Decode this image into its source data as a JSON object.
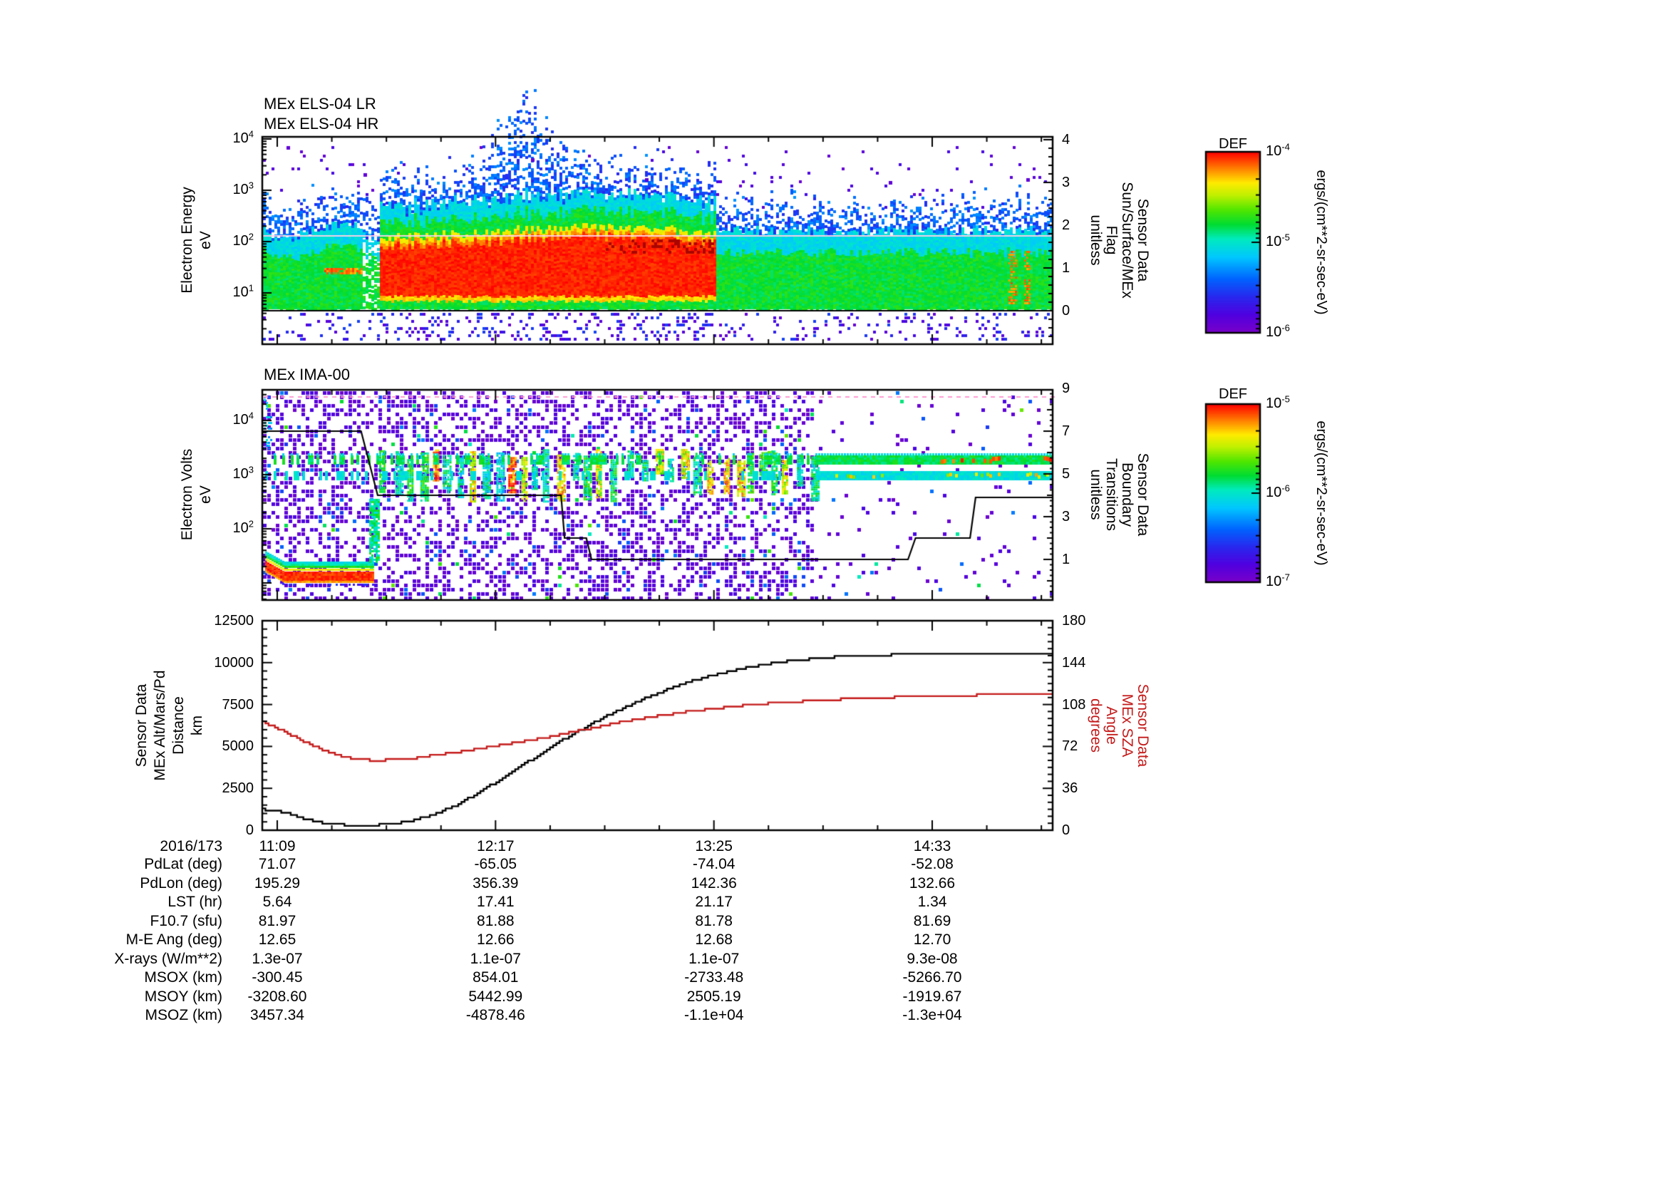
{
  "labels": {
    "els_title_1": "MEx ELS-04 LR",
    "els_title_2": "MEx ELS-04 HR",
    "ima_title": "MEx IMA-00",
    "els_ylabel": [
      "Electron Energy",
      "eV"
    ],
    "ima_ylabel": [
      "Electron Volts",
      "eV"
    ],
    "alt_ylabel": [
      "Sensor Data",
      "MEx Alt/Mars/Pd",
      "Distance",
      "km"
    ],
    "els_right_label": [
      "Sensor Data",
      "Sun/Surface/MEx",
      "Flag",
      "unitless"
    ],
    "ima_right_label": [
      "Sensor Data",
      "Boundary",
      "Transitions",
      "unitless"
    ],
    "sza_right_label": [
      "Sensor Data",
      "MEx SZA",
      "Angle",
      "degrees"
    ],
    "colorbar_title": "DEF",
    "colorbar_unit": "ergs/(cm**2-sr-sec-eV)"
  },
  "axes": {
    "date": "2016/173",
    "time_ticks": [
      "11:09",
      "12:17",
      "13:25",
      "14:33"
    ],
    "els_left_exponents": [
      "4",
      "3",
      "2",
      "1"
    ],
    "ima_left_exponents": [
      "4",
      "3",
      "2"
    ],
    "els_right_ticks": [
      "4",
      "3",
      "2",
      "1",
      "0"
    ],
    "ima_right_ticks": [
      "9",
      "7",
      "5",
      "3",
      "1"
    ],
    "alt_left_ticks": [
      "12500",
      "10000",
      "7500",
      "5000",
      "2500",
      "0"
    ],
    "sza_right_ticks": [
      "180",
      "144",
      "108",
      "72",
      "36",
      "0"
    ],
    "cb1_exponents": [
      "-4",
      "-5",
      "-6"
    ],
    "cb2_exponents": [
      "-5",
      "-6",
      "-7"
    ]
  },
  "table": {
    "corner": "2016/173",
    "times": [
      "11:09",
      "12:17",
      "13:25",
      "14:33"
    ],
    "rows": [
      {
        "label": "PdLat (deg)",
        "values": [
          "71.07",
          "-65.05",
          "-74.04",
          "-52.08"
        ]
      },
      {
        "label": "PdLon (deg)",
        "values": [
          "195.29",
          "356.39",
          "142.36",
          "132.66"
        ]
      },
      {
        "label": "LST (hr)",
        "values": [
          "5.64",
          "17.41",
          "21.17",
          "1.34"
        ]
      },
      {
        "label": "F10.7 (sfu)",
        "values": [
          "81.97",
          "81.88",
          "81.78",
          "81.69"
        ]
      },
      {
        "label": "M-E Ang (deg)",
        "values": [
          "12.65",
          "12.66",
          "12.68",
          "12.70"
        ]
      },
      {
        "label": "X-rays (W/m**2)",
        "values": [
          "1.3e-07",
          "1.1e-07",
          "1.1e-07",
          "9.3e-08"
        ]
      },
      {
        "label": "MSOX (km)",
        "values": [
          "-300.45",
          "854.01",
          "-2733.48",
          "-5266.70"
        ]
      },
      {
        "label": "MSOY (km)",
        "values": [
          "-3208.60",
          "5442.99",
          "2505.19",
          "-1919.67"
        ]
      },
      {
        "label": "MSOZ (km)",
        "values": [
          "3457.34",
          "-4878.46",
          "-1.1e+04",
          "-1.3e+04"
        ]
      }
    ]
  },
  "colors": {
    "sza_red": "#c41a1a",
    "line_black": "#000000",
    "pink_line": "#ffd2e8",
    "background": "#ffffff"
  },
  "chart_data": [
    {
      "type": "heatmap",
      "title": "MEx ELS-04 LR / MEx ELS-04 HR",
      "ylabel": "Electron Energy eV",
      "yscale": "log",
      "ylim": [
        1,
        10000
      ],
      "x_time_ticks": [
        "11:09",
        "12:17",
        "13:25",
        "14:33"
      ],
      "colorbar": {
        "title": "DEF",
        "units": "ergs/(cm**2-sr-sec-eV)",
        "ticks": [
          "1e-4",
          "1e-5",
          "1e-6"
        ]
      },
      "right_axis": {
        "label": "Sensor Data Sun/Surface/MEx Flag unitless",
        "ticks": [
          0,
          1,
          2,
          3,
          4
        ]
      },
      "flag_line": {
        "name": "Sun/Surface/MEx Flag",
        "value": 0
      },
      "features": [
        "continuous electron band ~5-200 eV across whole interval",
        "intense red core ~15-120 eV from ~11:35 to ~13:05",
        "green/cyan band with blue speckle elsewhere",
        "pale pink horizontal line near 150 eV across panel",
        "sparse blue/violet noise up to ~1 keV and below the band",
        "blue/green bump up to ~600 eV near 12:40"
      ]
    },
    {
      "type": "heatmap",
      "title": "MEx IMA-00",
      "ylabel": "Electron Volts eV",
      "yscale": "log",
      "ylim": [
        5,
        37000
      ],
      "colorbar": {
        "title": "DEF",
        "units": "ergs/(cm**2-sr-sec-eV)",
        "ticks": [
          "1e-5",
          "1e-6",
          "1e-7"
        ]
      },
      "right_axis": {
        "label": "Sensor Data Boundary Transitions unitless",
        "ticks": [
          1,
          3,
          5,
          7,
          9
        ]
      },
      "boundary_line_points_frac_value": [
        [
          0,
          7
        ],
        [
          0.125,
          7
        ],
        [
          0.146,
          4
        ],
        [
          0.378,
          4
        ],
        [
          0.3825,
          2
        ],
        [
          0.41,
          2
        ],
        [
          0.4165,
          1
        ],
        [
          0.817,
          1
        ],
        [
          0.8265,
          2
        ],
        [
          0.8955,
          2
        ],
        [
          0.9025,
          3.9
        ],
        [
          1,
          3.9
        ]
      ],
      "features": [
        "dense violet noise over left ~70% of panel",
        "low-energy red/orange ion band ~10-20 eV from 11:09 to ~11:45",
        "vertical cyan/green/yellow/red ion-beam stripes ~0.5-4 keV from ~11:45 to ~13:30",
        "two horizontal bands near 1 keV and 2 keV on right third with red/green dots",
        "sparse noise on right third"
      ]
    },
    {
      "type": "line",
      "ylabel_left": "Sensor Data MEx Alt/Mars/Pd Distance km",
      "ylim_left": [
        0,
        12500
      ],
      "ylabel_right": "Sensor Data MEx SZA Angle degrees",
      "ylim_right": [
        0,
        180
      ],
      "x_time_ticks": [
        "11:09",
        "12:17",
        "13:25",
        "14:33"
      ],
      "series": [
        {
          "name": "MEx Alt/Mars/Pd Distance (km)",
          "color": "#000000",
          "axis": "left",
          "points_frac_value": [
            [
              0,
              1250
            ],
            [
              0.029,
              1050
            ],
            [
              0.056,
              650
            ],
            [
              0.083,
              380
            ],
            [
              0.11,
              300
            ],
            [
              0.137,
              300
            ],
            [
              0.164,
              380
            ],
            [
              0.191,
              600
            ],
            [
              0.218,
              950
            ],
            [
              0.245,
              1500
            ],
            [
              0.272,
              2200
            ],
            [
              0.299,
              3000
            ],
            [
              0.326,
              3800
            ],
            [
              0.353,
              4600
            ],
            [
              0.38,
              5400
            ],
            [
              0.407,
              6100
            ],
            [
              0.434,
              6800
            ],
            [
              0.461,
              7400
            ],
            [
              0.488,
              7950
            ],
            [
              0.515,
              8450
            ],
            [
              0.542,
              8900
            ],
            [
              0.569,
              9250
            ],
            [
              0.596,
              9550
            ],
            [
              0.623,
              9800
            ],
            [
              0.65,
              10000
            ],
            [
              0.677,
              10150
            ],
            [
              0.704,
              10270
            ],
            [
              0.731,
              10360
            ],
            [
              0.758,
              10420
            ],
            [
              0.785,
              10460
            ],
            [
              0.821,
              10480
            ],
            [
              1,
              10500
            ]
          ]
        },
        {
          "name": "MEx SZA Angle (deg)",
          "color": "#c41a1a",
          "axis": "right",
          "points_frac_value": [
            [
              0,
              93
            ],
            [
              0.029,
              84
            ],
            [
              0.056,
              75
            ],
            [
              0.083,
              67
            ],
            [
              0.11,
              62
            ],
            [
              0.137,
              60
            ],
            [
              0.164,
              60.5
            ],
            [
              0.191,
              62
            ],
            [
              0.218,
              64.5
            ],
            [
              0.245,
              67
            ],
            [
              0.281,
              71
            ],
            [
              0.317,
              75
            ],
            [
              0.353,
              79
            ],
            [
              0.389,
              84
            ],
            [
              0.425,
              89
            ],
            [
              0.461,
              94
            ],
            [
              0.497,
              98
            ],
            [
              0.533,
              101.5
            ],
            [
              0.569,
              104.5
            ],
            [
              0.605,
              107
            ],
            [
              0.641,
              109
            ],
            [
              0.677,
              110.5
            ],
            [
              0.713,
              112
            ],
            [
              0.749,
              113
            ],
            [
              0.785,
              114
            ],
            [
              0.821,
              114.8
            ],
            [
              0.857,
              115.5
            ],
            [
              0.911,
              116.2
            ],
            [
              1,
              117
            ]
          ]
        }
      ]
    }
  ]
}
